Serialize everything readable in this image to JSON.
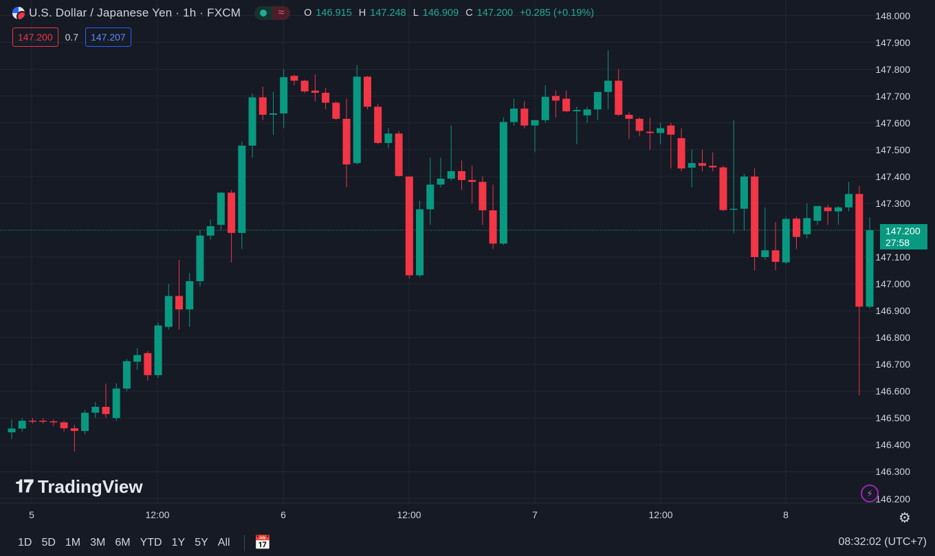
{
  "header": {
    "symbol_title": "U.S. Dollar / Japanese Yen · 1h · FXCM",
    "flag_icon": "us-jp-flag-icon",
    "ohlc": {
      "o_label": "O",
      "o": "146.915",
      "h_label": "H",
      "h": "147.248",
      "l_label": "L",
      "l": "146.909",
      "c_label": "C",
      "c": "147.200",
      "change": "+0.285 (+0.19%)"
    },
    "bid": "147.200",
    "spread": "0.7",
    "ask": "147.207"
  },
  "price_axis": {
    "labels": [
      "148.000",
      "147.900",
      "147.800",
      "147.700",
      "147.600",
      "147.500",
      "147.400",
      "147.300",
      "147.100",
      "147.000",
      "146.900",
      "146.800",
      "146.700",
      "146.600",
      "146.500",
      "146.400",
      "146.300",
      "146.200"
    ],
    "current_price": "147.200",
    "countdown": "27:58"
  },
  "time_axis": {
    "labels": [
      "5",
      "12:00",
      "6",
      "12:00",
      "7",
      "12:00",
      "8"
    ]
  },
  "watermark": "TradingView",
  "bottom_bar": {
    "ranges": [
      "1D",
      "5D",
      "1M",
      "3M",
      "6M",
      "YTD",
      "1Y",
      "5Y",
      "All"
    ],
    "clock": "08:32:02 (UTC+7)"
  },
  "colors": {
    "up": "#089981",
    "down": "#f23645",
    "background": "#161a25",
    "grid": "#232734"
  },
  "chart_data": {
    "type": "candlestick",
    "symbol": "USDJPY",
    "interval": "1h",
    "ylim": [
      146.19,
      148.03
    ],
    "grid": true,
    "candles": [
      [
        146.447,
        146.494,
        146.422,
        146.461
      ],
      [
        146.461,
        146.5,
        146.45,
        146.49
      ],
      [
        146.49,
        146.5,
        146.48,
        146.487
      ],
      [
        146.49,
        146.5,
        146.48,
        146.488
      ],
      [
        146.488,
        146.495,
        146.47,
        146.484
      ],
      [
        146.484,
        146.49,
        146.45,
        146.462
      ],
      [
        146.462,
        146.475,
        146.375,
        146.452
      ],
      [
        146.452,
        146.53,
        146.44,
        146.52
      ],
      [
        146.52,
        146.56,
        146.5,
        146.542
      ],
      [
        146.542,
        146.628,
        146.5,
        146.515
      ],
      [
        146.5,
        146.63,
        146.49,
        146.61
      ],
      [
        146.61,
        146.72,
        146.6,
        146.712
      ],
      [
        146.71,
        146.76,
        146.68,
        146.735
      ],
      [
        146.742,
        146.75,
        146.64,
        146.66
      ],
      [
        146.66,
        146.855,
        146.65,
        146.845
      ],
      [
        146.84,
        147.0,
        146.83,
        146.955
      ],
      [
        146.955,
        147.09,
        146.83,
        146.905
      ],
      [
        146.905,
        147.04,
        146.84,
        147.01
      ],
      [
        147.01,
        147.2,
        146.99,
        147.18
      ],
      [
        147.18,
        147.24,
        147.165,
        147.215
      ],
      [
        147.22,
        147.34,
        147.2,
        147.34
      ],
      [
        147.34,
        147.35,
        147.08,
        147.19
      ],
      [
        147.19,
        147.53,
        147.13,
        147.515
      ],
      [
        147.515,
        147.71,
        147.47,
        147.695
      ],
      [
        147.695,
        147.735,
        147.61,
        147.63
      ],
      [
        147.63,
        147.715,
        147.555,
        147.635
      ],
      [
        147.635,
        147.8,
        147.58,
        147.77
      ],
      [
        147.775,
        147.78,
        147.74,
        147.757
      ],
      [
        147.757,
        147.76,
        147.71,
        147.717
      ],
      [
        147.72,
        147.78,
        147.68,
        147.712
      ],
      [
        147.712,
        147.73,
        147.65,
        147.675
      ],
      [
        147.675,
        147.68,
        147.61,
        147.615
      ],
      [
        147.615,
        147.69,
        147.36,
        147.445
      ],
      [
        147.45,
        147.815,
        147.445,
        147.772
      ],
      [
        147.772,
        147.775,
        147.65,
        147.66
      ],
      [
        147.66,
        147.67,
        147.52,
        147.525
      ],
      [
        147.525,
        147.58,
        147.505,
        147.56
      ],
      [
        147.56,
        147.57,
        147.4,
        147.402
      ],
      [
        147.4,
        147.4,
        147.02,
        147.032
      ],
      [
        147.032,
        147.31,
        147.025,
        147.278
      ],
      [
        147.278,
        147.47,
        147.22,
        147.37
      ],
      [
        147.37,
        147.47,
        147.36,
        147.392
      ],
      [
        147.392,
        147.59,
        147.385,
        147.42
      ],
      [
        147.42,
        147.46,
        147.35,
        147.387
      ],
      [
        147.387,
        147.44,
        147.3,
        147.38
      ],
      [
        147.38,
        147.4,
        147.22,
        147.274
      ],
      [
        147.274,
        147.37,
        147.13,
        147.15
      ],
      [
        147.15,
        147.62,
        147.145,
        147.603
      ],
      [
        147.603,
        147.69,
        147.59,
        147.653
      ],
      [
        147.653,
        147.68,
        147.58,
        147.59
      ],
      [
        147.59,
        147.61,
        147.49,
        147.61
      ],
      [
        147.61,
        147.74,
        147.6,
        147.697
      ],
      [
        147.7,
        147.72,
        147.62,
        147.683
      ],
      [
        147.69,
        147.72,
        147.64,
        147.643
      ],
      [
        147.643,
        147.66,
        147.52,
        147.648
      ],
      [
        147.628,
        147.66,
        147.6,
        147.65
      ],
      [
        147.65,
        147.7,
        147.61,
        147.715
      ],
      [
        147.715,
        147.87,
        147.65,
        147.757
      ],
      [
        147.757,
        147.8,
        147.625,
        147.63
      ],
      [
        147.63,
        147.64,
        147.54,
        147.615
      ],
      [
        147.615,
        147.62,
        147.55,
        147.57
      ],
      [
        147.567,
        147.62,
        147.5,
        147.562
      ],
      [
        147.562,
        147.6,
        147.52,
        147.58
      ],
      [
        147.59,
        147.6,
        147.43,
        147.556
      ],
      [
        147.543,
        147.58,
        147.42,
        147.43
      ],
      [
        147.433,
        147.5,
        147.36,
        147.45
      ],
      [
        147.45,
        147.5,
        147.42,
        147.44
      ],
      [
        147.44,
        147.49,
        147.42,
        147.434
      ],
      [
        147.434,
        147.44,
        147.27,
        147.275
      ],
      [
        147.28,
        147.61,
        147.19,
        147.28
      ],
      [
        147.28,
        147.41,
        147.2,
        147.4
      ],
      [
        147.4,
        147.43,
        147.05,
        147.1
      ],
      [
        147.1,
        147.285,
        147.09,
        147.125
      ],
      [
        147.125,
        147.23,
        147.05,
        147.082
      ],
      [
        147.08,
        147.25,
        147.075,
        147.242
      ],
      [
        147.243,
        147.25,
        147.13,
        147.175
      ],
      [
        147.185,
        147.3,
        147.17,
        147.245
      ],
      [
        147.235,
        147.285,
        147.22,
        147.29
      ],
      [
        147.285,
        147.295,
        147.22,
        147.271
      ],
      [
        147.27,
        147.29,
        147.22,
        147.285
      ],
      [
        147.285,
        147.38,
        147.27,
        147.335
      ],
      [
        147.335,
        147.365,
        146.585,
        146.915
      ],
      [
        146.915,
        147.248,
        146.909,
        147.2
      ]
    ]
  }
}
